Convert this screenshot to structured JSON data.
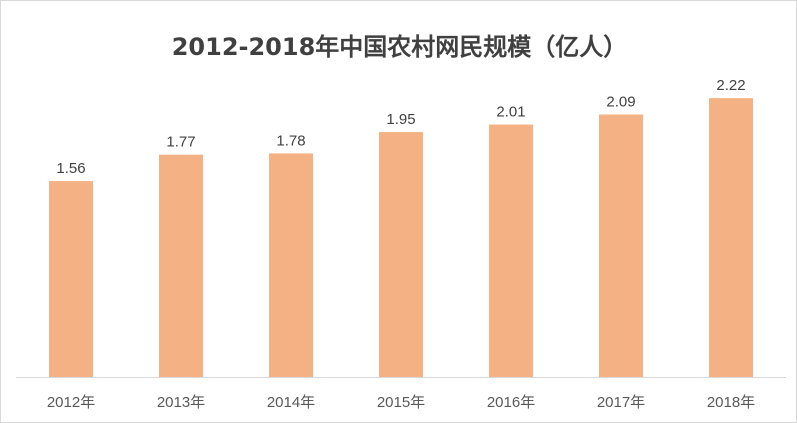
{
  "chart_data": {
    "type": "bar",
    "title": "2012-2018年中国农村网民规模（亿人）",
    "categories": [
      "2012年",
      "2013年",
      "2014年",
      "2015年",
      "2016年",
      "2017年",
      "2018年"
    ],
    "values": [
      1.56,
      1.77,
      1.78,
      1.95,
      2.01,
      2.09,
      2.22
    ],
    "data_labels": [
      "1.56",
      "1.77",
      "1.78",
      "1.95",
      "2.01",
      "2.09",
      "2.22"
    ],
    "xlabel": "",
    "ylabel": "",
    "ylim": [
      0,
      2.5
    ],
    "grid": false,
    "legend": "none",
    "bar_color": "#F4B183",
    "axis_color": "#D9D9D9"
  }
}
